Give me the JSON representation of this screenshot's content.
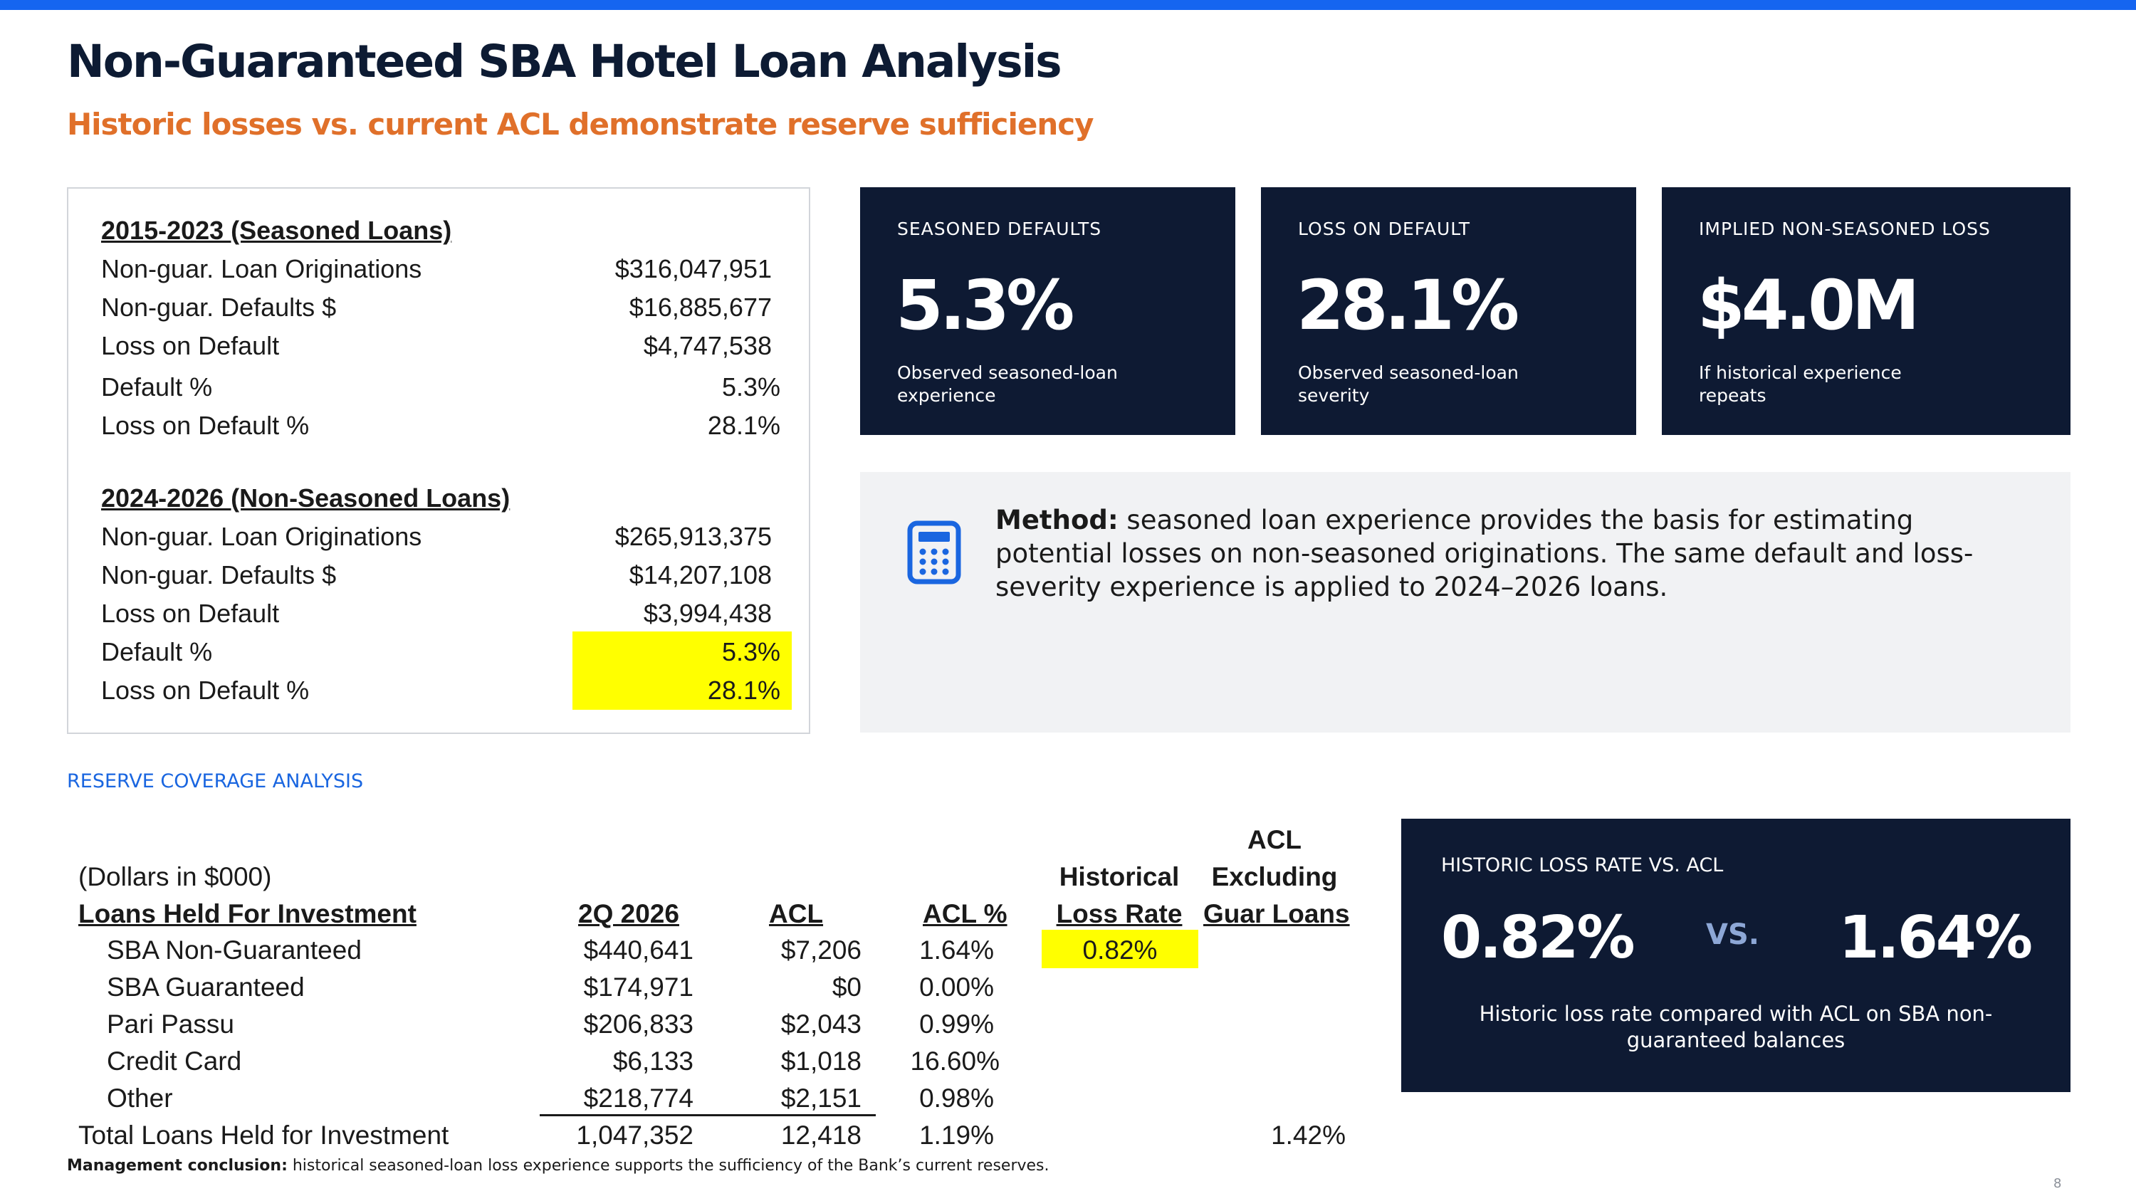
{
  "header": {
    "title": "Non-Guaranteed SBA Hotel Loan Analysis",
    "subtitle": "Historic losses vs. current ACL demonstrate reserve sufficiency"
  },
  "seasoned": {
    "heading": "2015-2023 (Seasoned Loans)",
    "rows": [
      {
        "label": "Non-guar. Loan Originations",
        "value": "$316,047,951"
      },
      {
        "label": "Non-guar. Defaults $",
        "value": "$16,885,677"
      },
      {
        "label": "Loss on Default",
        "value": "$4,747,538"
      },
      {
        "label": "Default %",
        "value": "5.3%"
      },
      {
        "label": "Loss on Default %",
        "value": "28.1%"
      }
    ]
  },
  "non_seasoned": {
    "heading": "2024-2026 (Non-Seasoned Loans)",
    "rows": [
      {
        "label": "Non-guar. Loan Originations",
        "value": "$265,913,375"
      },
      {
        "label": "Non-guar. Defaults $",
        "value": "$14,207,108"
      },
      {
        "label": "Loss on Default",
        "value": "$3,994,438"
      },
      {
        "label": "Default %",
        "value": "5.3%"
      },
      {
        "label": "Loss on Default %",
        "value": "28.1%"
      }
    ]
  },
  "kpis": [
    {
      "label": "SEASONED DEFAULTS",
      "value": "5.3%",
      "desc": "Observed seasoned-loan experience"
    },
    {
      "label": "LOSS ON DEFAULT",
      "value": "28.1%",
      "desc": "Observed seasoned-loan severity"
    },
    {
      "label": "IMPLIED NON-SEASONED LOSS",
      "value": "$4.0M",
      "desc": "If historical experience repeats"
    }
  ],
  "method": {
    "icon": "calculator-icon",
    "lead": "Method:",
    "text": " seasoned loan experience provides the basis for estimating potential losses on non-seasoned originations. The same default and loss-severity experience is applied to 2024–2026 loans."
  },
  "reserve": {
    "section_label": "RESERVE COVERAGE ANALYSIS",
    "units": "(Dollars in $000)",
    "headers": {
      "category": "Loans Held For Investment",
      "period": "2Q 2026",
      "acl": "ACL",
      "acl_pct": "ACL %",
      "hist_line1": "Historical",
      "hist_line2": "Loss Rate",
      "excl_line1": "ACL",
      "excl_line2": "Excluding",
      "excl_line3": "Guar Loans"
    },
    "rows": [
      {
        "name": "SBA Non-Guaranteed",
        "balance": "$440,641",
        "acl": "$7,206",
        "acl_pct": "1.64%",
        "hist": "0.82%"
      },
      {
        "name": "SBA Guaranteed",
        "balance": "$174,971",
        "acl": "$0",
        "acl_pct": "0.00%"
      },
      {
        "name": "Pari Passu",
        "balance": "$206,833",
        "acl": "$2,043",
        "acl_pct": "0.99%"
      },
      {
        "name": "Credit Card",
        "balance": "$6,133",
        "acl": "$1,018",
        "acl_pct": "16.60%"
      },
      {
        "name": "Other",
        "balance": "$218,774",
        "acl": "$2,151",
        "acl_pct": "0.98%"
      }
    ],
    "total": {
      "name": "Total Loans Held for Investment",
      "balance": "1,047,352",
      "acl": "12,418",
      "acl_pct": "1.19%",
      "excl": "1.42%"
    }
  },
  "compare": {
    "label": "HISTORIC LOSS RATE VS. ACL",
    "left": "0.82%",
    "vs": "VS.",
    "right": "1.64%",
    "desc": "Historic loss rate compared with ACL on SBA non-guaranteed balances"
  },
  "footer": {
    "lead": "Management conclusion:",
    "text": " historical seasoned-loan loss experience supports the sufficiency of the Bank’s current reserves."
  },
  "page_number": "8",
  "colors": {
    "accent_blue": "#1565f0",
    "navy": "#0e1a33",
    "orange": "#e0702a",
    "highlight": "#ffff00"
  }
}
